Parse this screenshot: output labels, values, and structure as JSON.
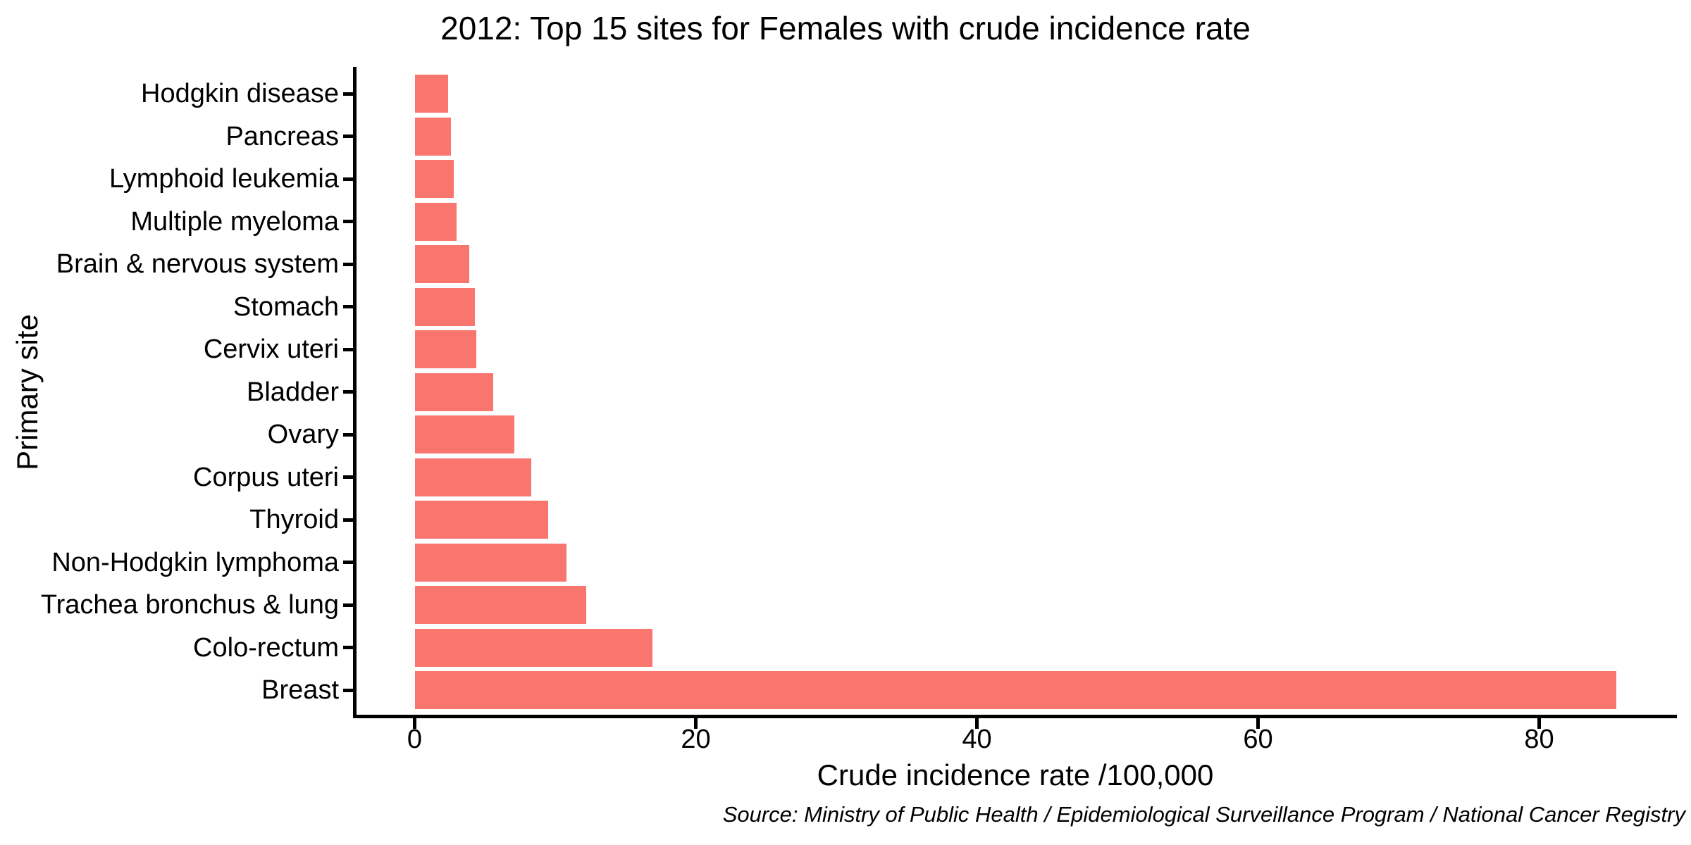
{
  "figure": {
    "title": "2012: Top 15 sites for Females with crude incidence rate",
    "source_caption": "Source: Ministry of Public Health / Epidemiological Surveillance Program / National Cancer Registry"
  },
  "chart_data": {
    "type": "bar",
    "orientation": "horizontal",
    "title": "2012: Top 15 sites for Females with crude incidence rate",
    "xlabel": "Crude incidence rate /100,000",
    "ylabel": "Primary site",
    "source": "Source: Ministry of Public Health / Epidemiological Surveillance Program / National Cancer Registry",
    "categories": [
      "Hodgkin disease",
      "Pancreas",
      "Lymphoid leukemia",
      "Multiple myeloma",
      "Brain & nervous system",
      "Stomach",
      "Cervix uteri",
      "Bladder",
      "Ovary",
      "Corpus uteri",
      "Thyroid",
      "Non-Hodgkin lymphoma",
      "Trachea bronchus & lung",
      "Colo-rectum",
      "Breast"
    ],
    "values": [
      2.4,
      2.6,
      2.8,
      3.0,
      3.9,
      4.3,
      4.4,
      5.6,
      7.1,
      8.3,
      9.5,
      10.8,
      12.2,
      16.9,
      85.5
    ],
    "x_ticks": [
      0,
      20,
      40,
      60,
      80
    ],
    "xlim": [
      0,
      90
    ],
    "bar_color": "#F8766D",
    "axis_color": "#000000",
    "background_color": "#FFFFFF",
    "grid": false,
    "legend": false,
    "sort_order": "ascending top to bottom"
  }
}
